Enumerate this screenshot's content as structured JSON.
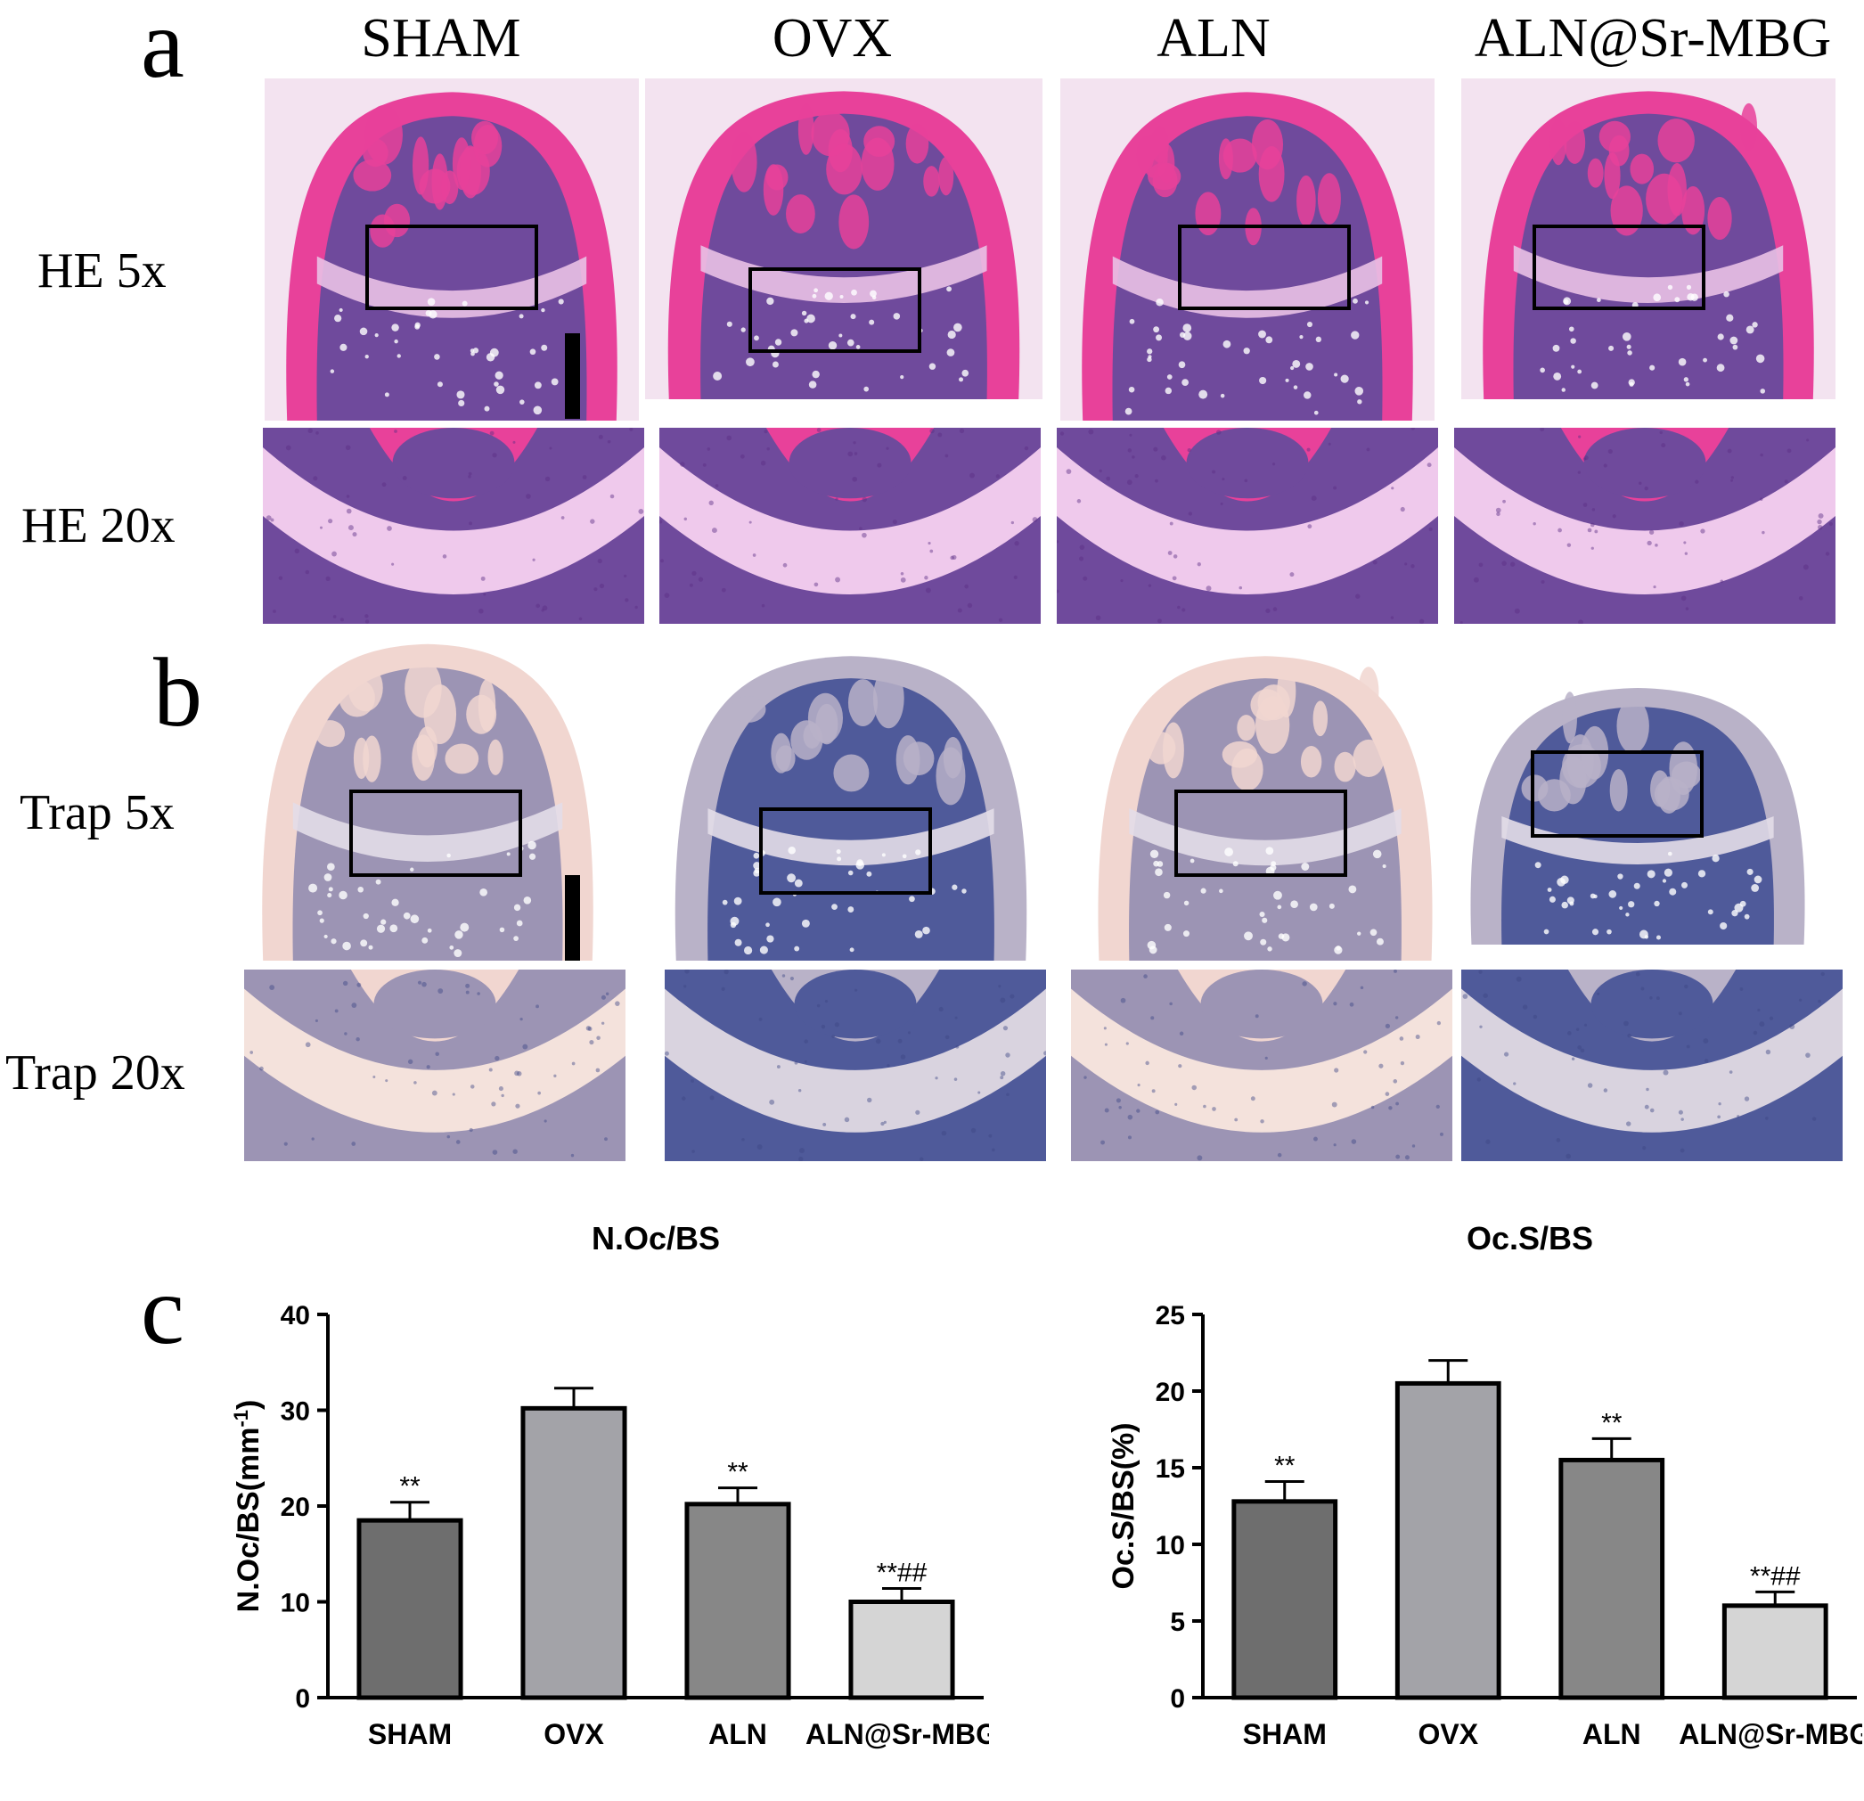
{
  "panel_labels": {
    "a": "a",
    "b": "b",
    "c": "c"
  },
  "columns": [
    "SHAM",
    "OVX",
    "ALN",
    "ALN@Sr-MBG"
  ],
  "rows": {
    "he5": "HE 5x",
    "he20": "HE 20x",
    "trap5": "Trap 5x",
    "trap20": "Trap 20x"
  },
  "colors": {
    "he_background": "#cf7fc6",
    "he_bone": "#e8419a",
    "he_marrow": "#6f4a9c",
    "trap_background": "#c6bfd0",
    "trap_marrow": "#4f5a9a",
    "trap_pink": "#e9c9c4",
    "bar_dark": "#6e6e6e",
    "bar_mid_light": "#a3a3a8",
    "bar_mid": "#878787",
    "bar_light": "#d5d5d5"
  },
  "chart_data": [
    {
      "type": "bar",
      "title": "N.Oc/BS",
      "xlabel": "",
      "ylabel": "N.Oc/BS(mm",
      "ylabel_sup": "-1",
      "ylabel_suffix": ")",
      "categories": [
        "SHAM",
        "OVX",
        "ALN",
        "ALN@Sr-MBG"
      ],
      "values": [
        18.5,
        30.2,
        20.2,
        10.0
      ],
      "errors": [
        1.9,
        2.1,
        1.7,
        1.4
      ],
      "annotations": [
        "**",
        "",
        "**",
        "**##"
      ],
      "ylim": [
        0,
        40
      ],
      "yticks": [
        0,
        10,
        20,
        30,
        40
      ],
      "bar_colors": [
        "#6e6e6e",
        "#a3a3a8",
        "#878787",
        "#d5d5d5"
      ],
      "grid": false
    },
    {
      "type": "bar",
      "title": "Oc.S/BS",
      "xlabel": "",
      "ylabel": "Oc.S/BS(%)",
      "ylabel_sup": "",
      "ylabel_suffix": "",
      "categories": [
        "SHAM",
        "OVX",
        "ALN",
        "ALN@Sr-MBG"
      ],
      "values": [
        12.8,
        20.5,
        15.5,
        6.0
      ],
      "errors": [
        1.3,
        1.5,
        1.4,
        0.9
      ],
      "annotations": [
        "**",
        "",
        "**",
        "**##"
      ],
      "ylim": [
        0,
        25
      ],
      "yticks": [
        0,
        5,
        10,
        15,
        20,
        25
      ],
      "bar_colors": [
        "#6e6e6e",
        "#a3a3a8",
        "#878787",
        "#d5d5d5"
      ],
      "grid": false
    }
  ]
}
